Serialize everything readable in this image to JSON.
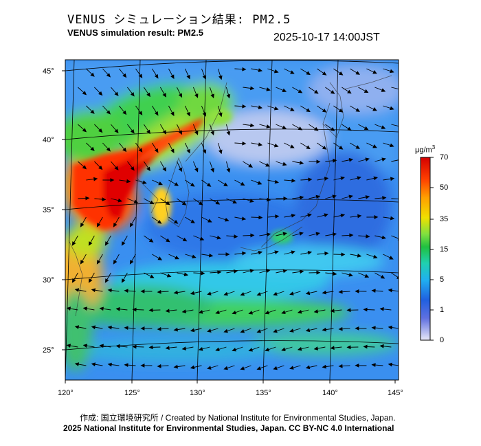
{
  "header": {
    "title_jp": "VENUS シミュレーション結果: PM2.5",
    "title_en": "VENUS simulation result: PM2.5",
    "datetime": "2025-10-17 14:00JST"
  },
  "map": {
    "lon_labels": [
      "120°",
      "125°",
      "130°",
      "135°",
      "140°",
      "145°"
    ],
    "lat_labels": [
      "45°",
      "40°",
      "35°",
      "30°",
      "25°"
    ],
    "lon_range": [
      120,
      145
    ],
    "lat_range": [
      23,
      46
    ],
    "wind_vectors": "shown"
  },
  "colorbar": {
    "unit_base": "μg/m",
    "unit_sup": "3",
    "labels": [
      "70",
      "50",
      "35",
      "15",
      "5",
      "1",
      "0"
    ],
    "colors": [
      "#d40000",
      "#ff4000",
      "#ffa000",
      "#f0e000",
      "#80e040",
      "#20c040",
      "#20d0b0",
      "#20b0f0",
      "#2060e0",
      "#6070e0",
      "#e8e8f8"
    ]
  },
  "footer": {
    "credit_jp_en": "作成: 国立環境研究所 / Created by National Institute for Environmental Studies, Japan.",
    "license": "2025 National Institute for Environmental Studies, Japan. CC BY-NC 4.0 International"
  }
}
